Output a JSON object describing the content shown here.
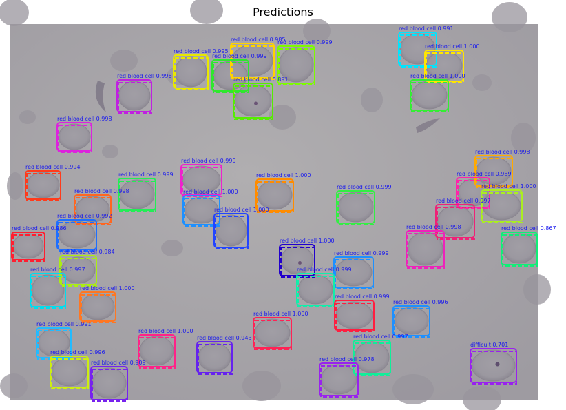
{
  "title": "Predictions",
  "image": {
    "background_color": "#a8a5a9",
    "cell_fill": "#9c999f",
    "cell_edge": "#8a8690",
    "dark_cell_color": "#7d7685"
  },
  "detections": [
    {
      "label": "red blood cell 0.985",
      "color": "#ffd400"
    },
    {
      "label": "red blood cell 0.999",
      "color": "#7cfc00"
    },
    {
      "label": "red blood cell 0.991",
      "color": "#00e5ff"
    },
    {
      "label": "red blood cell 1.000",
      "color": "#ffe600"
    },
    {
      "label": "red blood cell 0.995",
      "color": "#e8e800"
    },
    {
      "label": "red blood cell 0.999",
      "color": "#2ee82e"
    },
    {
      "label": "red blood cell 1.000",
      "color": "#33ee33"
    },
    {
      "label": "red blood cell 0.996",
      "color": "#c020e0"
    },
    {
      "label": "red blood cell 0.891",
      "color": "#55ee00"
    },
    {
      "label": "red blood cell 0.998",
      "color": "#dd22dd"
    },
    {
      "label": "red blood cell 0.994",
      "color": "#ff3b1b"
    },
    {
      "label": "red blood cell 0.999",
      "color": "#ee22cc"
    },
    {
      "label": "red blood cell 0.999",
      "color": "#22ee55"
    },
    {
      "label": "red blood cell 1.000",
      "color": "#ff8c00"
    },
    {
      "label": "red blood cell 0.998",
      "color": "#ff6620"
    },
    {
      "label": "red blood cell 1.000",
      "color": "#1e90ff"
    },
    {
      "label": "red blood cell 0.999",
      "color": "#33ee44"
    },
    {
      "label": "red blood cell 0.998",
      "color": "#ffaa00"
    },
    {
      "label": "red blood cell 0.989",
      "color": "#ff22aa"
    },
    {
      "label": "red blood cell 1.000",
      "color": "#aaee22"
    },
    {
      "label": "red blood cell 0.997",
      "color": "#ee2277"
    },
    {
      "label": "red blood cell 0.992",
      "color": "#1e6fff"
    },
    {
      "label": "red blood cell 1.000",
      "color": "#2244ff"
    },
    {
      "label": "red blood cell 0.986",
      "color": "#ff1e30"
    },
    {
      "label": "red blood cell 0.998",
      "color": "#ee22bb"
    },
    {
      "label": "red blood cell 0.867",
      "color": "#11ee77"
    },
    {
      "label": "red blood cell 0.984",
      "color": "#aaee11"
    },
    {
      "label": "red blood cell 1.000",
      "color": "#2200cc"
    },
    {
      "label": "red blood cell 0.999",
      "color": "#1e90ff"
    },
    {
      "label": "red blood cell 0.997",
      "color": "#00ddee"
    },
    {
      "label": "red blood cell 0.999",
      "color": "#11eeaa"
    },
    {
      "label": "red blood cell 1.000",
      "color": "#ff7722"
    },
    {
      "label": "red blood cell 0.999",
      "color": "#ff1e40"
    },
    {
      "label": "red blood cell 0.996",
      "color": "#1e90ff"
    },
    {
      "label": "red blood cell 1.000",
      "color": "#ff2255"
    },
    {
      "label": "red blood cell 0.991",
      "color": "#22bbff"
    },
    {
      "label": "red blood cell 0.997",
      "color": "#11ee99"
    },
    {
      "label": "red blood cell 1.000",
      "color": "#ff2288"
    },
    {
      "label": "red blood cell 0.943",
      "color": "#6622ee"
    },
    {
      "label": "red blood cell 0.996",
      "color": "#ccee11"
    },
    {
      "label": "red blood cell 0.978",
      "color": "#9922ee"
    },
    {
      "label": "difficult 0.701",
      "color": "#9922ee"
    },
    {
      "label": "red blood cell 0.909",
      "color": "#7722ee"
    }
  ]
}
